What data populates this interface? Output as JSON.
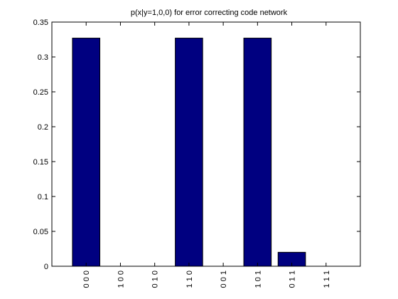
{
  "chart_data": {
    "type": "bar",
    "title": "p(x|y=1,0,0) for error correcting code network",
    "xlabel": "",
    "ylabel": "",
    "categories": [
      "0 0 0",
      "1 0 0",
      "0 1 0",
      "1 1 0",
      "0 0 1",
      "1 0 1",
      "0 1 1",
      "1 1 1"
    ],
    "values": [
      0.327,
      0.0,
      0.0,
      0.327,
      0.0,
      0.327,
      0.02,
      0.0
    ],
    "ylim": [
      0,
      0.35
    ],
    "yticks": [
      0,
      0.05,
      0.1,
      0.15,
      0.2,
      0.25,
      0.3,
      0.35
    ],
    "ytick_labels": [
      "0",
      "0.05",
      "0.1",
      "0.15",
      "0.2",
      "0.25",
      "0.3",
      "0.35"
    ],
    "x_tick_label_rotation": "vertical",
    "grid": false,
    "legend": "none",
    "bar_color": "#000080",
    "axes_color": "#000000",
    "background_color": "#ffffff"
  }
}
